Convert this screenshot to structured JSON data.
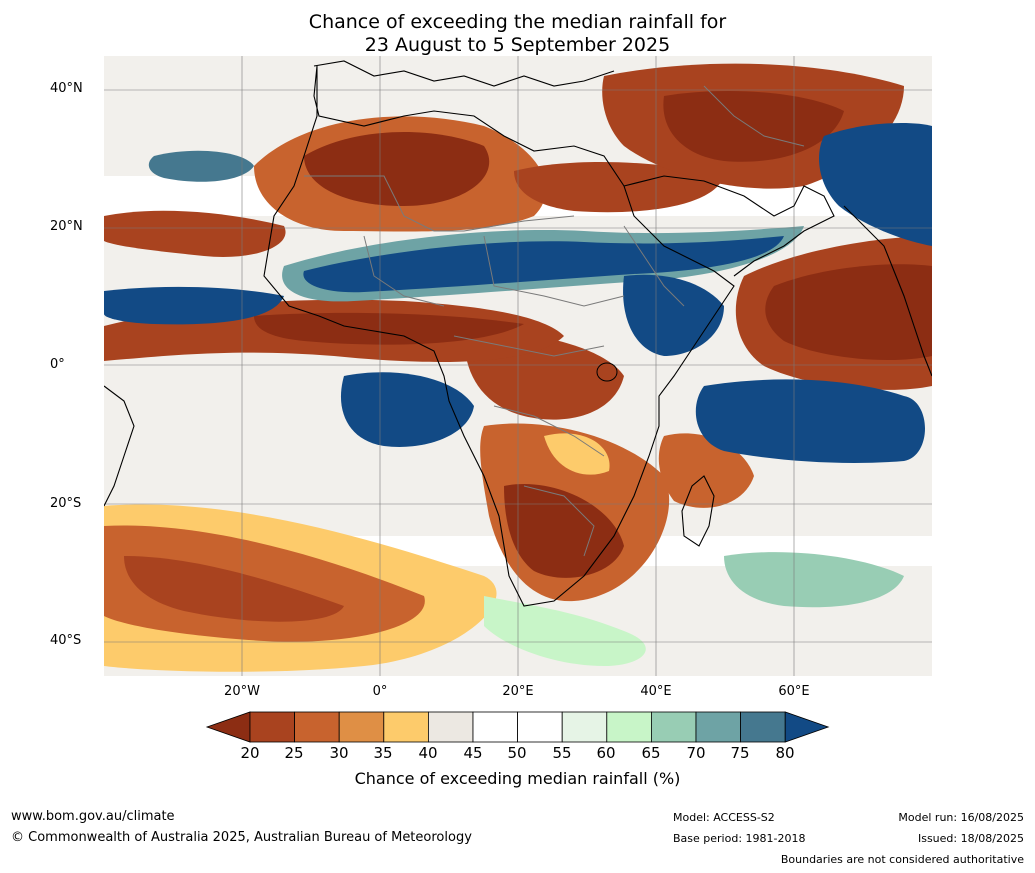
{
  "title": {
    "line1": "Chance of exceeding the median rainfall for",
    "line2": "23 August to 5 September 2025"
  },
  "map": {
    "region": "Africa",
    "lat_labels": [
      "40°N",
      "20°N",
      "0°",
      "20°S",
      "40°S"
    ],
    "lon_labels": [
      "20°W",
      "0°",
      "20°E",
      "40°E",
      "60°E"
    ]
  },
  "colorbar": {
    "ticks": [
      "20",
      "25",
      "30",
      "35",
      "40",
      "45",
      "50",
      "55",
      "60",
      "65",
      "70",
      "75",
      "80"
    ],
    "colors": [
      "#8c2d13",
      "#a9431f",
      "#c8632e",
      "#df8f45",
      "#fdcb6b",
      "#ece8e2",
      "#ffffff",
      "#ffffff",
      "#e6f4e6",
      "#c8f5c8",
      "#98cdb4",
      "#6ea3a5",
      "#45788f",
      "#124a85"
    ],
    "title": "Chance of exceeding median rainfall (%)"
  },
  "footer": {
    "website": "www.bom.gov.au/climate",
    "copyright": "© Commonwealth of Australia 2025, Australian Bureau of Meteorology",
    "model": "Model: ACCESS-S2",
    "base_period": "Base period: 1981-2018",
    "model_run": "Model run: 16/08/2025",
    "issued": "Issued: 18/08/2025",
    "disclaimer": "Boundaries are not considered authoritative"
  }
}
